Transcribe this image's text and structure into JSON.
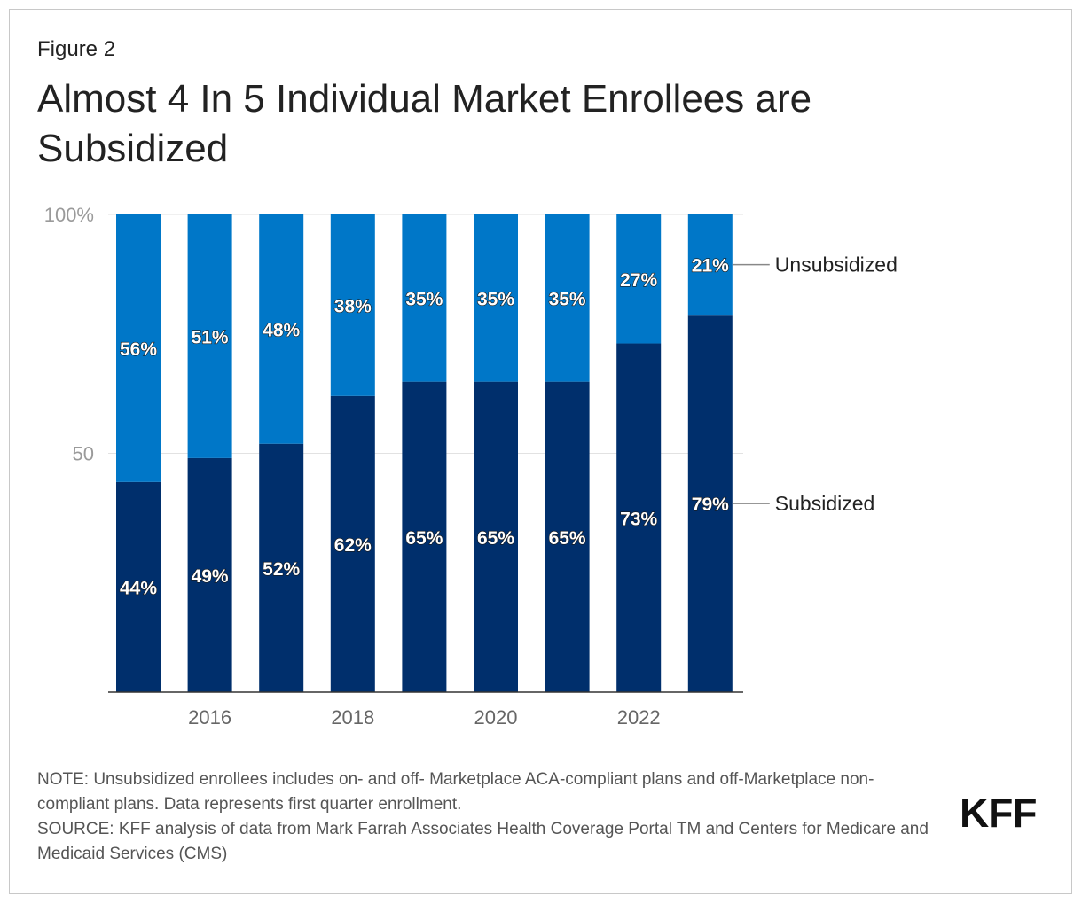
{
  "figure_label": "Figure 2",
  "logo_text": "KFF",
  "notes": {
    "note": "NOTE: Unsubsidized enrollees includes on- and off- Marketplace ACA-compliant plans and off-Marketplace non-compliant plans. Data represents first quarter enrollment.",
    "source": "SOURCE: KFF analysis of data from Mark Farrah Associates Health Coverage Portal TM and Centers for Medicare and Medicaid Services (CMS)"
  },
  "chart_data": {
    "type": "bar",
    "stacked": true,
    "title": "Almost 4 In 5 Individual Market Enrollees are Subsidized",
    "xlabel": "",
    "ylabel": "",
    "ylim": [
      0,
      100
    ],
    "yticks": [
      "50",
      "100%"
    ],
    "ytick_values": [
      50,
      100
    ],
    "x": [
      2015,
      2016,
      2017,
      2018,
      2019,
      2020,
      2021,
      2022,
      2023
    ],
    "xtick_labels": [
      "2016",
      "2018",
      "2020",
      "2022"
    ],
    "xtick_values": [
      2016,
      2018,
      2020,
      2022
    ],
    "series": [
      {
        "name": "Subsidized",
        "color": "#002f6c",
        "values": [
          44,
          49,
          52,
          62,
          65,
          65,
          65,
          73,
          79
        ],
        "labels": [
          "44%",
          "49%",
          "52%",
          "62%",
          "65%",
          "65%",
          "65%",
          "73%",
          "79%"
        ]
      },
      {
        "name": "Unsubsidized",
        "color": "#0077c8",
        "values": [
          56,
          51,
          48,
          38,
          35,
          35,
          35,
          27,
          21
        ],
        "labels": [
          "56%",
          "51%",
          "48%",
          "38%",
          "35%",
          "35%",
          "35%",
          "27%",
          "21%"
        ]
      }
    ],
    "legend": "right, direct labels at last bar",
    "grid": true
  }
}
